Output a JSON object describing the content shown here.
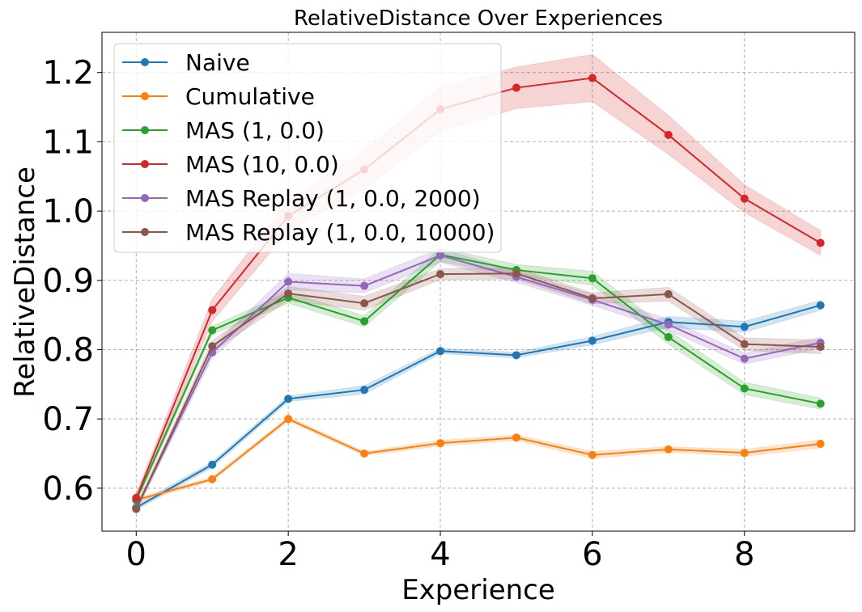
{
  "chart_data": {
    "type": "line",
    "title": "RelativeDistance Over Experiences",
    "xlabel": "Experience",
    "ylabel": "RelativeDistance",
    "x": [
      0,
      1,
      2,
      3,
      4,
      5,
      6,
      7,
      8,
      9
    ],
    "xlim": [
      -0.45,
      9.45
    ],
    "ylim": [
      0.538,
      1.258
    ],
    "xticks": [
      0,
      2,
      4,
      6,
      8
    ],
    "xtick_labels": [
      "0",
      "2",
      "4",
      "6",
      "8"
    ],
    "yticks": [
      0.6,
      0.7,
      0.8,
      0.9,
      1.0,
      1.1,
      1.2
    ],
    "ytick_labels": [
      "0.6",
      "0.7",
      "0.8",
      "0.9",
      "1.0",
      "1.1",
      "1.2"
    ],
    "grid": true,
    "legend_position": "upper-left",
    "series": [
      {
        "name": "Naive",
        "color": "#1f77b4",
        "values": [
          0.572,
          0.634,
          0.729,
          0.742,
          0.798,
          0.792,
          0.813,
          0.84,
          0.833,
          0.864
        ],
        "band": [
          0.004,
          0.004,
          0.004,
          0.006,
          0.004,
          0.004,
          0.006,
          0.008,
          0.008,
          0.007
        ]
      },
      {
        "name": "Cumulative",
        "color": "#ff7f0e",
        "values": [
          0.583,
          0.613,
          0.7,
          0.65,
          0.665,
          0.673,
          0.648,
          0.656,
          0.651,
          0.664
        ],
        "band": [
          0.003,
          0.003,
          0.003,
          0.003,
          0.004,
          0.004,
          0.005,
          0.004,
          0.005,
          0.006
        ]
      },
      {
        "name": "MAS (1, 0.0)",
        "color": "#2ca02c",
        "values": [
          0.583,
          0.828,
          0.875,
          0.841,
          0.937,
          0.915,
          0.903,
          0.818,
          0.744,
          0.722
        ],
        "band": [
          0.005,
          0.006,
          0.008,
          0.008,
          0.01,
          0.008,
          0.01,
          0.01,
          0.009,
          0.008
        ]
      },
      {
        "name": "MAS (10, 0.0)",
        "color": "#d62728",
        "values": [
          0.586,
          0.857,
          0.993,
          1.06,
          1.147,
          1.178,
          1.192,
          1.11,
          1.018,
          0.954
        ],
        "band": [
          0.006,
          0.016,
          0.022,
          0.028,
          0.032,
          0.03,
          0.034,
          0.028,
          0.02,
          0.018
        ]
      },
      {
        "name": "MAS Replay (1, 0.0, 2000)",
        "color": "#9467bd",
        "values": [
          0.571,
          0.796,
          0.898,
          0.892,
          0.936,
          0.905,
          0.872,
          0.836,
          0.787,
          0.81
        ],
        "band": [
          0.005,
          0.008,
          0.012,
          0.01,
          0.01,
          0.008,
          0.008,
          0.008,
          0.008,
          0.008
        ]
      },
      {
        "name": "MAS Replay (1, 0.0, 10000)",
        "color": "#8c564b",
        "values": [
          0.57,
          0.805,
          0.881,
          0.867,
          0.909,
          0.91,
          0.874,
          0.88,
          0.808,
          0.804
        ],
        "band": [
          0.004,
          0.008,
          0.01,
          0.01,
          0.008,
          0.008,
          0.008,
          0.01,
          0.009,
          0.01
        ]
      }
    ]
  }
}
